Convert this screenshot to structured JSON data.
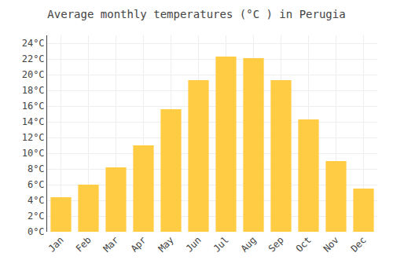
{
  "chart_data": {
    "type": "bar",
    "title": "Average monthly temperatures (°C ) in Perugia",
    "categories": [
      "Jan",
      "Feb",
      "Mar",
      "Apr",
      "May",
      "Jun",
      "Jul",
      "Aug",
      "Sep",
      "Oct",
      "Nov",
      "Dec"
    ],
    "values": [
      4.4,
      6.0,
      8.2,
      11.0,
      15.6,
      19.3,
      22.3,
      22.1,
      19.3,
      14.3,
      9.0,
      5.5
    ],
    "color": "#FFCC44",
    "ylim": [
      0,
      25
    ],
    "yticks": [
      {
        "value": 0,
        "label": "0°C"
      },
      {
        "value": 2,
        "label": "2°C"
      },
      {
        "value": 4,
        "label": "4°C"
      },
      {
        "value": 6,
        "label": "6°C"
      },
      {
        "value": 8,
        "label": "8°C"
      },
      {
        "value": 10,
        "label": "10°C"
      },
      {
        "value": 12,
        "label": "12°C"
      },
      {
        "value": 14,
        "label": "14°C"
      },
      {
        "value": 16,
        "label": "16°C"
      },
      {
        "value": 18,
        "label": "18°C"
      },
      {
        "value": 20,
        "label": "20°C"
      },
      {
        "value": 22,
        "label": "22°C"
      },
      {
        "value": 24,
        "label": "24°C"
      }
    ],
    "grid": true
  }
}
